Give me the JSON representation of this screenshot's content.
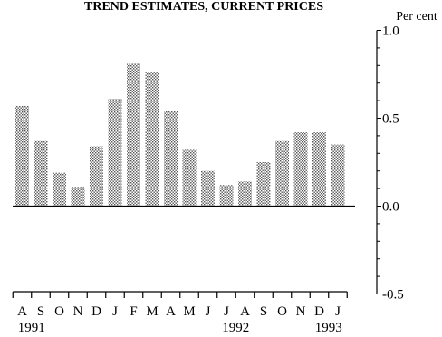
{
  "chart_data": {
    "type": "bar",
    "title": "TREND ESTIMATES, CURRENT PRICES",
    "ylabel": "Per cent",
    "ylim": [
      -0.5,
      1.0
    ],
    "yticks": [
      {
        "value": 1.0,
        "label": "1.0"
      },
      {
        "value": 0.5,
        "label": "0.5"
      },
      {
        "value": 0.0,
        "label": "0.0"
      },
      {
        "value": -0.5,
        "label": "-0.5"
      }
    ],
    "categories": [
      "A",
      "S",
      "O",
      "N",
      "D",
      "J",
      "F",
      "M",
      "A",
      "M",
      "J",
      "J",
      "A",
      "S",
      "O",
      "N",
      "D",
      "J"
    ],
    "values": [
      0.57,
      0.37,
      0.19,
      0.11,
      0.34,
      0.61,
      0.81,
      0.76,
      0.54,
      0.32,
      0.2,
      0.12,
      0.14,
      0.25,
      0.37,
      0.42,
      0.42,
      0.35
    ],
    "year_labels": [
      {
        "label": "1991",
        "index": 0.5
      },
      {
        "label": "1992",
        "index": 11.5
      },
      {
        "label": "1993",
        "index": 16.5
      }
    ],
    "bar_pattern": "stipple",
    "bar_color": "#a8a8a8",
    "axis_color": "#000000",
    "grid": false,
    "legend": "none"
  }
}
